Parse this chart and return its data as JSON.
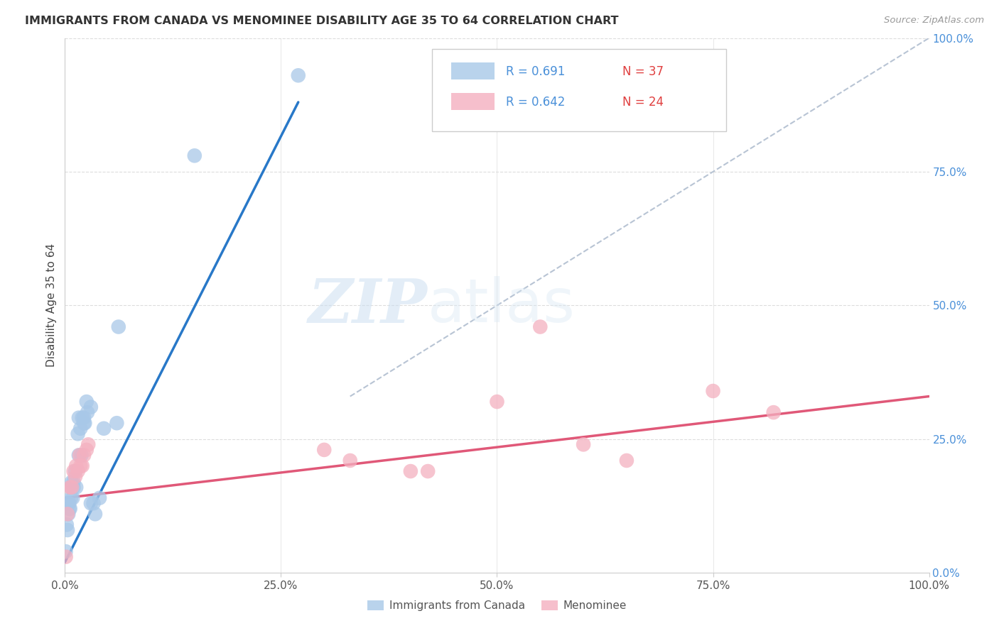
{
  "title": "IMMIGRANTS FROM CANADA VS MENOMINEE DISABILITY AGE 35 TO 64 CORRELATION CHART",
  "source": "Source: ZipAtlas.com",
  "xlabel": "",
  "ylabel": "Disability Age 35 to 64",
  "xlim": [
    0,
    100
  ],
  "ylim": [
    0,
    100
  ],
  "xtick_labels": [
    "0.0%",
    "",
    "",
    "",
    "",
    "25.0%",
    "",
    "",
    "",
    "",
    "50.0%",
    "",
    "",
    "",
    "",
    "75.0%",
    "",
    "",
    "",
    "",
    "100.0%"
  ],
  "xtick_positions": [
    0,
    5,
    10,
    15,
    20,
    25,
    30,
    35,
    40,
    45,
    50,
    55,
    60,
    65,
    70,
    75,
    80,
    85,
    90,
    95,
    100
  ],
  "ytick_labels_right": [
    "100.0%",
    "75.0%",
    "50.0%",
    "25.0%",
    "0.0%"
  ],
  "ytick_positions_right": [
    100,
    75,
    50,
    25,
    0
  ],
  "legend_blue_r": "R = 0.691",
  "legend_blue_n": "N = 37",
  "legend_pink_r": "R = 0.642",
  "legend_pink_n": "N = 24",
  "blue_color": "#a8c8e8",
  "pink_color": "#f4b0c0",
  "blue_line_color": "#2878c8",
  "pink_line_color": "#e05878",
  "diagonal_color": "#b8c4d4",
  "watermark_zip": "ZIP",
  "watermark_atlas": "atlas",
  "blue_points_x": [
    0.1,
    0.2,
    0.3,
    0.3,
    0.4,
    0.5,
    0.5,
    0.6,
    0.7,
    0.7,
    0.8,
    0.9,
    1.0,
    1.0,
    1.2,
    1.3,
    1.5,
    1.6,
    1.6,
    1.8,
    1.9,
    2.0,
    2.2,
    2.2,
    2.3,
    2.5,
    2.6,
    3.0,
    3.0,
    3.3,
    3.5,
    4.0,
    4.5,
    6.0,
    6.2,
    15.0,
    27.0
  ],
  "blue_points_y": [
    4,
    9,
    13,
    8,
    11,
    13,
    12,
    12,
    16,
    14,
    17,
    14,
    17,
    16,
    19,
    16,
    26,
    29,
    22,
    27,
    22,
    29,
    29,
    28,
    28,
    32,
    30,
    31,
    13,
    13,
    11,
    14,
    27,
    28,
    46,
    78,
    93
  ],
  "pink_points_x": [
    0.1,
    0.3,
    0.6,
    0.8,
    1.0,
    1.2,
    1.3,
    1.5,
    1.7,
    1.8,
    2.0,
    2.2,
    2.5,
    2.7,
    30,
    33,
    40,
    42,
    50,
    55,
    60,
    65,
    75,
    82
  ],
  "pink_points_y": [
    3,
    11,
    16,
    16,
    19,
    18,
    20,
    19,
    22,
    20,
    20,
    22,
    23,
    24,
    23,
    21,
    19,
    19,
    32,
    46,
    24,
    21,
    34,
    30
  ],
  "blue_line_x": [
    0,
    27
  ],
  "blue_line_y": [
    2,
    88
  ],
  "pink_line_x": [
    0,
    100
  ],
  "pink_line_y": [
    14,
    33
  ],
  "diag_line_x": [
    33,
    100
  ],
  "diag_line_y": [
    33,
    100
  ]
}
